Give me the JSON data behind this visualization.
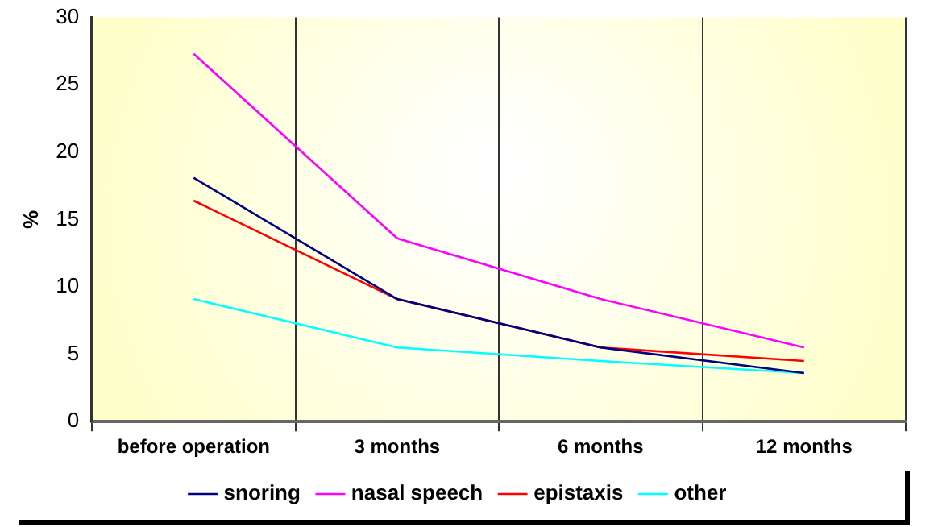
{
  "chart_data": {
    "type": "line",
    "ylabel": "%",
    "categories": [
      "before operation",
      "3 months",
      "6 months",
      "12 months"
    ],
    "series": [
      {
        "name": "snoring",
        "color": "#000080",
        "values": [
          18.1,
          9.1,
          5.5,
          3.6
        ]
      },
      {
        "name": "nasal speech",
        "color": "#ff00ff",
        "values": [
          27.3,
          13.6,
          9.1,
          5.5
        ]
      },
      {
        "name": "epistaxis",
        "color": "#ff0000",
        "values": [
          16.4,
          9.1,
          5.5,
          4.5
        ]
      },
      {
        "name": "other",
        "color": "#00ffff",
        "values": [
          9.1,
          5.5,
          4.5,
          3.6
        ]
      }
    ],
    "ylim": [
      0,
      30
    ],
    "yticks": [
      0,
      5,
      10,
      15,
      20,
      25,
      30
    ],
    "grid": "x",
    "legend": "bottom",
    "marker": "none",
    "line_style": "solid"
  }
}
